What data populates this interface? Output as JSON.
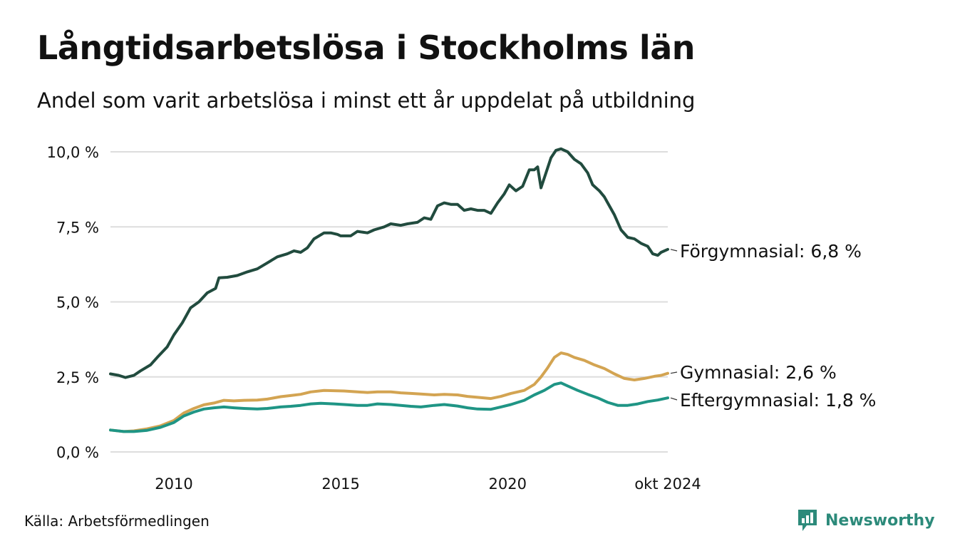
{
  "title": "Långtidsarbetslösa i Stockholms län",
  "subtitle": "Andel som varit arbetslösa i minst ett år uppdelat på utbildning",
  "source": "Källa: Arbetsförmedlingen",
  "brand": "Newsworthy",
  "colors": {
    "forgymnasial": "#214b3e",
    "gymnasial": "#d3a452",
    "eftergymnasial": "#1f9585",
    "grid": "#dddddd",
    "brand": "#2c8a7a"
  },
  "chart_data": {
    "type": "line",
    "title": "Långtidsarbetslösa i Stockholms län",
    "xlabel": "",
    "ylabel": "",
    "xlim": [
      2008.1,
      2024.8
    ],
    "ylim": [
      0,
      10
    ],
    "y_ticks": [
      0,
      2.5,
      5,
      7.5,
      10
    ],
    "y_tick_labels": [
      "0,0 %",
      "2,5 %",
      "5,0 %",
      "7,5 %",
      "10,0 %"
    ],
    "x_ticks": [
      2010,
      2015,
      2020,
      2024.8
    ],
    "x_tick_labels": [
      "2010",
      "2015",
      "2020",
      "okt 2024"
    ],
    "grid": true,
    "series": [
      {
        "key": "forgymnasial",
        "name": "Förgymnasial",
        "end_label": "Förgymnasial: 6,8 %",
        "points": [
          [
            2008.1,
            2.6
          ],
          [
            2008.35,
            2.55
          ],
          [
            2008.55,
            2.48
          ],
          [
            2008.8,
            2.55
          ],
          [
            2009.0,
            2.7
          ],
          [
            2009.3,
            2.9
          ],
          [
            2009.5,
            3.15
          ],
          [
            2009.8,
            3.5
          ],
          [
            2010.0,
            3.9
          ],
          [
            2010.25,
            4.3
          ],
          [
            2010.5,
            4.8
          ],
          [
            2010.75,
            5.0
          ],
          [
            2011.0,
            5.3
          ],
          [
            2011.25,
            5.45
          ],
          [
            2011.35,
            5.8
          ],
          [
            2011.6,
            5.82
          ],
          [
            2011.9,
            5.88
          ],
          [
            2012.2,
            6.0
          ],
          [
            2012.5,
            6.1
          ],
          [
            2012.8,
            6.3
          ],
          [
            2013.1,
            6.5
          ],
          [
            2013.4,
            6.6
          ],
          [
            2013.6,
            6.7
          ],
          [
            2013.8,
            6.65
          ],
          [
            2014.0,
            6.8
          ],
          [
            2014.2,
            7.1
          ],
          [
            2014.5,
            7.3
          ],
          [
            2014.7,
            7.3
          ],
          [
            2014.9,
            7.25
          ],
          [
            2015.0,
            7.2
          ],
          [
            2015.3,
            7.2
          ],
          [
            2015.5,
            7.35
          ],
          [
            2015.8,
            7.3
          ],
          [
            2016.0,
            7.4
          ],
          [
            2016.3,
            7.5
          ],
          [
            2016.5,
            7.6
          ],
          [
            2016.8,
            7.55
          ],
          [
            2017.0,
            7.6
          ],
          [
            2017.3,
            7.65
          ],
          [
            2017.5,
            7.8
          ],
          [
            2017.7,
            7.75
          ],
          [
            2017.9,
            8.2
          ],
          [
            2018.1,
            8.3
          ],
          [
            2018.3,
            8.25
          ],
          [
            2018.5,
            8.25
          ],
          [
            2018.7,
            8.05
          ],
          [
            2018.9,
            8.1
          ],
          [
            2019.1,
            8.05
          ],
          [
            2019.3,
            8.05
          ],
          [
            2019.5,
            7.95
          ],
          [
            2019.7,
            8.3
          ],
          [
            2019.9,
            8.6
          ],
          [
            2020.05,
            8.9
          ],
          [
            2020.25,
            8.7
          ],
          [
            2020.45,
            8.85
          ],
          [
            2020.65,
            9.4
          ],
          [
            2020.8,
            9.4
          ],
          [
            2020.9,
            9.5
          ],
          [
            2021.0,
            8.8
          ],
          [
            2021.15,
            9.3
          ],
          [
            2021.3,
            9.8
          ],
          [
            2021.45,
            10.05
          ],
          [
            2021.6,
            10.1
          ],
          [
            2021.8,
            10.0
          ],
          [
            2022.0,
            9.75
          ],
          [
            2022.2,
            9.6
          ],
          [
            2022.4,
            9.3
          ],
          [
            2022.55,
            8.9
          ],
          [
            2022.75,
            8.7
          ],
          [
            2022.9,
            8.5
          ],
          [
            2023.0,
            8.3
          ],
          [
            2023.2,
            7.9
          ],
          [
            2023.4,
            7.4
          ],
          [
            2023.6,
            7.15
          ],
          [
            2023.8,
            7.1
          ],
          [
            2024.0,
            6.95
          ],
          [
            2024.2,
            6.85
          ],
          [
            2024.35,
            6.6
          ],
          [
            2024.5,
            6.55
          ],
          [
            2024.6,
            6.65
          ],
          [
            2024.8,
            6.75
          ]
        ]
      },
      {
        "key": "gymnasial",
        "name": "Gymnasial",
        "end_label": "Gymnasial: 2,6 %",
        "points": [
          [
            2008.1,
            0.73
          ],
          [
            2008.5,
            0.68
          ],
          [
            2008.8,
            0.7
          ],
          [
            2009.2,
            0.77
          ],
          [
            2009.6,
            0.87
          ],
          [
            2010.0,
            1.05
          ],
          [
            2010.3,
            1.3
          ],
          [
            2010.6,
            1.45
          ],
          [
            2010.9,
            1.57
          ],
          [
            2011.2,
            1.63
          ],
          [
            2011.5,
            1.72
          ],
          [
            2011.8,
            1.7
          ],
          [
            2012.1,
            1.72
          ],
          [
            2012.5,
            1.73
          ],
          [
            2012.8,
            1.76
          ],
          [
            2013.2,
            1.84
          ],
          [
            2013.5,
            1.88
          ],
          [
            2013.8,
            1.92
          ],
          [
            2014.1,
            2.0
          ],
          [
            2014.5,
            2.05
          ],
          [
            2014.8,
            2.04
          ],
          [
            2015.1,
            2.03
          ],
          [
            2015.5,
            2.0
          ],
          [
            2015.8,
            1.98
          ],
          [
            2016.1,
            2.0
          ],
          [
            2016.5,
            2.0
          ],
          [
            2016.8,
            1.97
          ],
          [
            2017.1,
            1.95
          ],
          [
            2017.4,
            1.93
          ],
          [
            2017.8,
            1.9
          ],
          [
            2018.1,
            1.92
          ],
          [
            2018.5,
            1.9
          ],
          [
            2018.8,
            1.85
          ],
          [
            2019.1,
            1.82
          ],
          [
            2019.5,
            1.78
          ],
          [
            2019.8,
            1.85
          ],
          [
            2020.1,
            1.95
          ],
          [
            2020.5,
            2.05
          ],
          [
            2020.8,
            2.25
          ],
          [
            2021.0,
            2.5
          ],
          [
            2021.2,
            2.8
          ],
          [
            2021.4,
            3.15
          ],
          [
            2021.6,
            3.3
          ],
          [
            2021.8,
            3.25
          ],
          [
            2022.0,
            3.15
          ],
          [
            2022.3,
            3.05
          ],
          [
            2022.6,
            2.9
          ],
          [
            2022.9,
            2.78
          ],
          [
            2023.2,
            2.6
          ],
          [
            2023.5,
            2.45
          ],
          [
            2023.8,
            2.4
          ],
          [
            2024.1,
            2.45
          ],
          [
            2024.4,
            2.52
          ],
          [
            2024.6,
            2.55
          ],
          [
            2024.8,
            2.62
          ]
        ]
      },
      {
        "key": "eftergymnasial",
        "name": "Eftergymnasial",
        "end_label": "Eftergymnasial: 1,8 %",
        "points": [
          [
            2008.1,
            0.73
          ],
          [
            2008.5,
            0.68
          ],
          [
            2008.8,
            0.68
          ],
          [
            2009.2,
            0.72
          ],
          [
            2009.6,
            0.82
          ],
          [
            2010.0,
            0.98
          ],
          [
            2010.3,
            1.2
          ],
          [
            2010.6,
            1.33
          ],
          [
            2010.9,
            1.43
          ],
          [
            2011.2,
            1.47
          ],
          [
            2011.5,
            1.5
          ],
          [
            2011.8,
            1.47
          ],
          [
            2012.1,
            1.45
          ],
          [
            2012.5,
            1.43
          ],
          [
            2012.8,
            1.45
          ],
          [
            2013.2,
            1.5
          ],
          [
            2013.5,
            1.52
          ],
          [
            2013.8,
            1.55
          ],
          [
            2014.1,
            1.6
          ],
          [
            2014.4,
            1.62
          ],
          [
            2014.8,
            1.6
          ],
          [
            2015.1,
            1.58
          ],
          [
            2015.5,
            1.55
          ],
          [
            2015.8,
            1.55
          ],
          [
            2016.1,
            1.6
          ],
          [
            2016.5,
            1.58
          ],
          [
            2016.8,
            1.55
          ],
          [
            2017.1,
            1.52
          ],
          [
            2017.4,
            1.5
          ],
          [
            2017.8,
            1.55
          ],
          [
            2018.1,
            1.58
          ],
          [
            2018.5,
            1.53
          ],
          [
            2018.8,
            1.47
          ],
          [
            2019.1,
            1.43
          ],
          [
            2019.5,
            1.42
          ],
          [
            2019.8,
            1.5
          ],
          [
            2020.1,
            1.58
          ],
          [
            2020.5,
            1.72
          ],
          [
            2020.8,
            1.9
          ],
          [
            2021.1,
            2.05
          ],
          [
            2021.4,
            2.25
          ],
          [
            2021.6,
            2.3
          ],
          [
            2021.8,
            2.2
          ],
          [
            2022.1,
            2.05
          ],
          [
            2022.4,
            1.92
          ],
          [
            2022.7,
            1.8
          ],
          [
            2023.0,
            1.65
          ],
          [
            2023.3,
            1.55
          ],
          [
            2023.6,
            1.55
          ],
          [
            2023.9,
            1.6
          ],
          [
            2024.2,
            1.68
          ],
          [
            2024.5,
            1.73
          ],
          [
            2024.8,
            1.8
          ]
        ]
      }
    ]
  }
}
